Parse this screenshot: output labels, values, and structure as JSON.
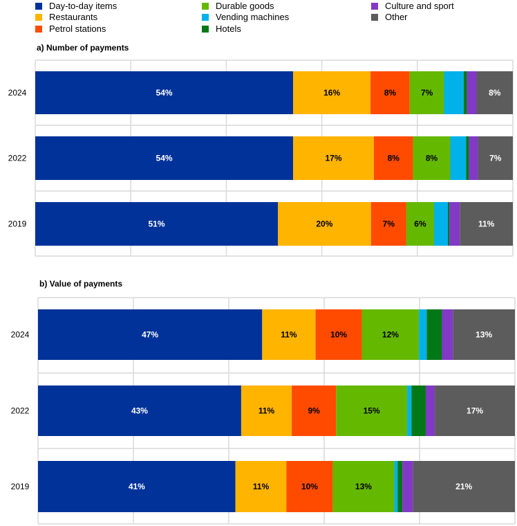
{
  "chart_data": {
    "type": "bar",
    "stacked": true,
    "orientation": "horizontal",
    "legend": {
      "placement": "top",
      "entries": [
        "Day-to-day items",
        "Restaurants",
        "Petrol stations",
        "Durable goods",
        "Vending machines",
        "Hotels",
        "Culture and sport",
        "Other"
      ]
    },
    "colors": [
      "#003299",
      "#FFB400",
      "#FF4B00",
      "#65B800",
      "#00B1EA",
      "#007816",
      "#8139C6",
      "#5C5C5C"
    ],
    "label_colors": [
      "#FFFFFF",
      "#000000",
      "#000000",
      "#000000",
      "#000000",
      "#000000",
      "#000000",
      "#FFFFFF"
    ],
    "xlim": [
      0,
      100
    ],
    "grid": true,
    "panels": [
      {
        "title": "a) Number of payments",
        "categories": [
          "2024",
          "2022",
          "2019"
        ],
        "series_values": [
          [
            54.0,
            16.2,
            8.2,
            7.2,
            4.1,
            0.7,
            2.0,
            7.6
          ],
          [
            54.0,
            16.9,
            8.2,
            7.8,
            3.3,
            0.6,
            1.9,
            7.3
          ],
          [
            50.8,
            19.5,
            7.4,
            5.8,
            2.9,
            0.3,
            2.2,
            11.1
          ]
        ],
        "labels": [
          [
            "54%",
            "16%",
            "8%",
            "7%",
            "",
            "",
            "",
            "8%"
          ],
          [
            "54%",
            "17%",
            "8%",
            "8%",
            "",
            "",
            "",
            "7%"
          ],
          [
            "51%",
            "20%",
            "7%",
            "6%",
            "",
            "",
            "",
            "11%"
          ]
        ]
      },
      {
        "title": "b) Value of payments",
        "categories": [
          "2024",
          "2022",
          "2019"
        ],
        "series_values": [
          [
            47.0,
            11.2,
            9.7,
            12.0,
            1.6,
            3.2,
            2.3,
            13.0
          ],
          [
            42.6,
            10.6,
            9.3,
            14.9,
            0.9,
            3.0,
            1.9,
            16.8
          ],
          [
            41.4,
            10.7,
            9.7,
            12.9,
            0.7,
            1.0,
            2.2,
            21.4
          ]
        ],
        "labels": [
          [
            "47%",
            "11%",
            "10%",
            "12%",
            "",
            "",
            "",
            "13%"
          ],
          [
            "43%",
            "11%",
            "9%",
            "15%",
            "",
            "",
            "",
            "17%"
          ],
          [
            "41%",
            "11%",
            "10%",
            "13%",
            "",
            "",
            "",
            "21%"
          ]
        ]
      }
    ]
  }
}
